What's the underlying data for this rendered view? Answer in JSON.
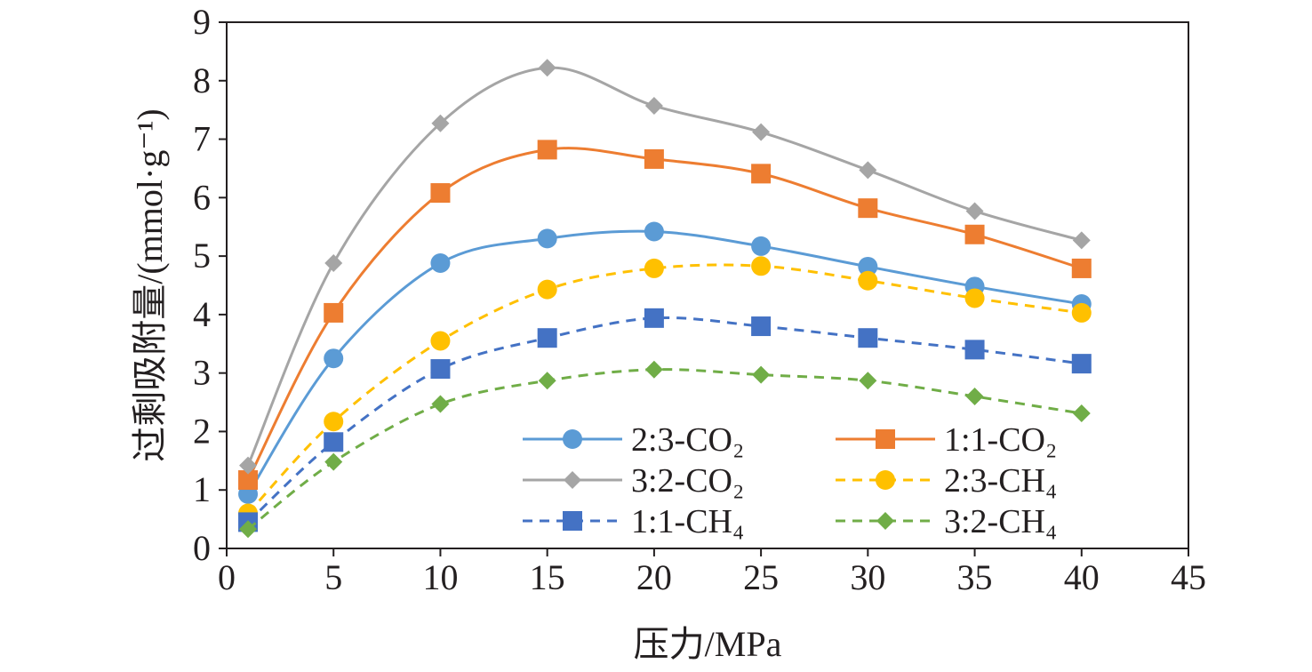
{
  "chart_data": {
    "type": "line",
    "title": "",
    "xlabel": "压力/MPa",
    "ylabel": "过剩吸附量/(mmol·g⁻¹)",
    "xlim": [
      0,
      45
    ],
    "ylim": [
      0,
      9
    ],
    "xticks": [
      0,
      5,
      10,
      15,
      20,
      25,
      30,
      35,
      40,
      45
    ],
    "yticks": [
      0,
      1,
      2,
      3,
      4,
      5,
      6,
      7,
      8,
      9
    ],
    "grid": false,
    "legend_position": "bottom-right",
    "x": [
      1,
      5,
      10,
      15,
      20,
      25,
      30,
      35,
      40
    ],
    "series": [
      {
        "name": "2:3-CO₂",
        "color": "#5b9bd5",
        "marker": "circle",
        "dash": "solid",
        "values": [
          0.93,
          3.25,
          4.88,
          5.3,
          5.42,
          5.17,
          4.82,
          4.48,
          4.18
        ]
      },
      {
        "name": "1:1-CO₂",
        "color": "#ed7d31",
        "marker": "square",
        "dash": "solid",
        "values": [
          1.17,
          4.03,
          6.08,
          6.82,
          6.66,
          6.41,
          5.82,
          5.37,
          4.79
        ]
      },
      {
        "name": "3:2-CO₂",
        "color": "#a5a5a5",
        "marker": "diamond",
        "dash": "solid",
        "values": [
          1.42,
          4.88,
          7.27,
          8.22,
          7.57,
          7.12,
          6.47,
          5.77,
          5.27
        ]
      },
      {
        "name": "2:3-CH₄",
        "color": "#ffc000",
        "marker": "circle",
        "dash": "dashed",
        "values": [
          0.6,
          2.17,
          3.55,
          4.43,
          4.79,
          4.83,
          4.58,
          4.28,
          4.03
        ]
      },
      {
        "name": "1:1-CH₄",
        "color": "#4472c4",
        "marker": "square",
        "dash": "dashed",
        "values": [
          0.45,
          1.82,
          3.07,
          3.6,
          3.94,
          3.8,
          3.6,
          3.4,
          3.16
        ]
      },
      {
        "name": "3:2-CH₄",
        "color": "#70ad47",
        "marker": "diamond",
        "dash": "dashed",
        "values": [
          0.33,
          1.48,
          2.47,
          2.87,
          3.06,
          2.97,
          2.87,
          2.6,
          2.31
        ]
      }
    ]
  }
}
